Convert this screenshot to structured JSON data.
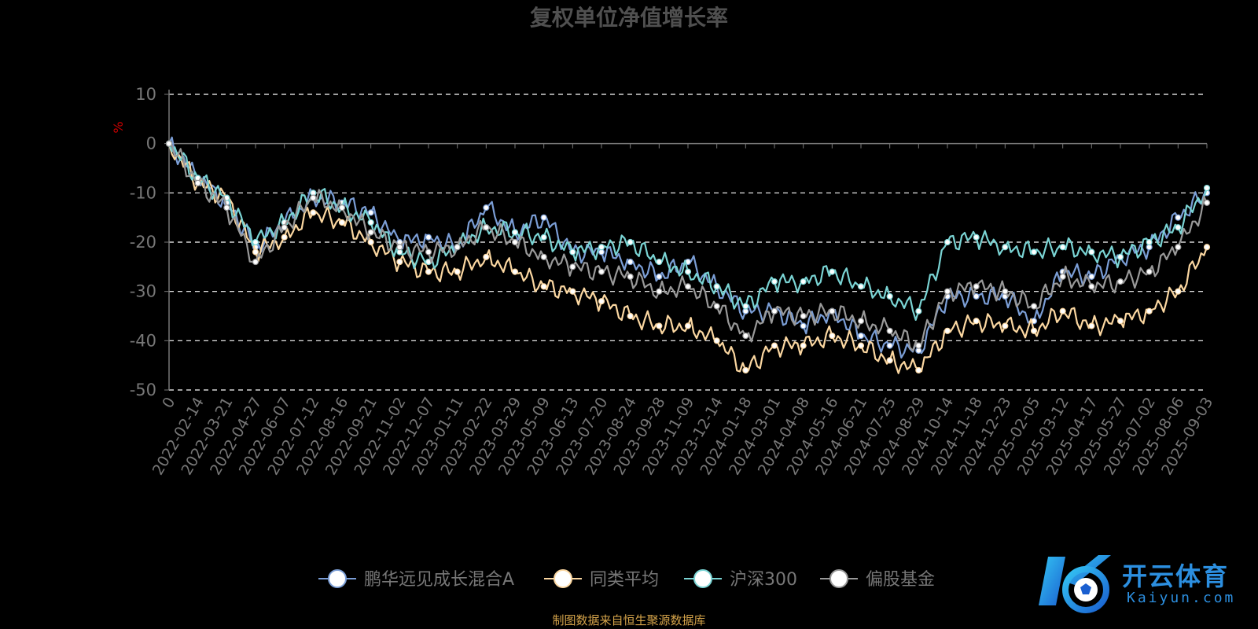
{
  "colors": {
    "background": "#000000",
    "title": "#505050",
    "axis_text": "#777777",
    "grid": "#ffffff",
    "ylabel": "#cc0000",
    "source": "#d4a34a",
    "logo": "#2c8fe0"
  },
  "source_text": "制图数据来自恒生聚源数据库",
  "logo": {
    "icon": "kaiyun-k-ball-logo",
    "cn": "开云体育",
    "en": "Kaiyun.com"
  },
  "chart_data": {
    "type": "line",
    "title": "复权单位净值增长率",
    "ylabel": "%",
    "xlabel": "",
    "ylim": [
      -50,
      10
    ],
    "yticks": [
      10,
      0,
      -10,
      -20,
      -30,
      -40,
      -50
    ],
    "grid": true,
    "legend_position": "bottom",
    "x_tick_labels": [
      "0",
      "2022-02-14",
      "2022-03-21",
      "2022-04-27",
      "2022-06-07",
      "2022-07-12",
      "2022-08-16",
      "2022-09-21",
      "2022-11-02",
      "2022-12-07",
      "2023-01-11",
      "2023-02-22",
      "2023-03-29",
      "2023-05-09",
      "2023-06-13",
      "2023-07-20",
      "2023-08-24",
      "2023-09-28",
      "2023-11-09",
      "2023-12-14",
      "2024-01-18",
      "2024-03-01",
      "2024-04-08",
      "2024-05-16",
      "2024-06-21",
      "2024-07-25",
      "2024-08-29",
      "2024-10-14",
      "2024-11-18",
      "2024-12-23",
      "2025-02-05",
      "2025-03-12",
      "2025-04-17",
      "2025-05-27",
      "2025-07-02",
      "2025-08-06",
      "2025-09-03"
    ],
    "series": [
      {
        "name": "鹏华远见成长混合A",
        "color": "#7b9ed6",
        "values": [
          0,
          -7,
          -12,
          -21,
          -16,
          -11,
          -12,
          -14,
          -20,
          -19,
          -21,
          -13,
          -18,
          -15,
          -22,
          -22,
          -24,
          -27,
          -24,
          -29,
          -34,
          -34,
          -37,
          -34,
          -39,
          -41,
          -42,
          -31,
          -31,
          -31,
          -36,
          -26,
          -27,
          -23,
          -21,
          -15,
          -10
        ]
      },
      {
        "name": "同类平均",
        "color": "#fbd7a1",
        "values": [
          0,
          -8,
          -11,
          -22,
          -19,
          -14,
          -16,
          -20,
          -24,
          -26,
          -26,
          -23,
          -26,
          -29,
          -30,
          -32,
          -35,
          -37,
          -37,
          -40,
          -46,
          -41,
          -41,
          -39,
          -41,
          -44,
          -46,
          -38,
          -36,
          -37,
          -38,
          -34,
          -37,
          -36,
          -34,
          -30,
          -21
        ]
      },
      {
        "name": "沪深300",
        "color": "#7ad4d4",
        "values": [
          0,
          -7,
          -11,
          -20,
          -16,
          -10,
          -13,
          -16,
          -22,
          -24,
          -21,
          -17,
          -18,
          -19,
          -22,
          -21,
          -20,
          -24,
          -26,
          -29,
          -33,
          -28,
          -28,
          -26,
          -29,
          -31,
          -34,
          -20,
          -19,
          -21,
          -22,
          -21,
          -22,
          -23,
          -20,
          -17,
          -9
        ]
      },
      {
        "name": "偏股基金",
        "color": "#999999",
        "values": [
          0,
          -8,
          -13,
          -24,
          -17,
          -11,
          -13,
          -18,
          -21,
          -22,
          -21,
          -17,
          -20,
          -23,
          -25,
          -26,
          -27,
          -30,
          -29,
          -33,
          -39,
          -34,
          -35,
          -34,
          -36,
          -38,
          -41,
          -30,
          -29,
          -30,
          -33,
          -27,
          -29,
          -28,
          -26,
          -21,
          -12
        ]
      }
    ]
  }
}
